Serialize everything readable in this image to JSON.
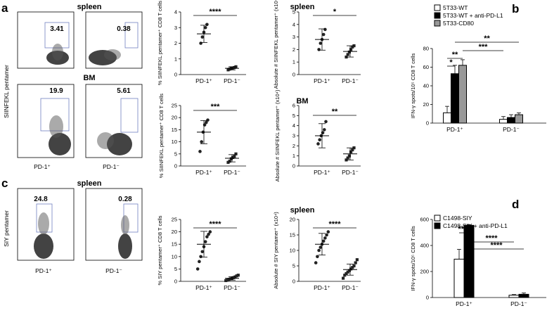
{
  "panel_labels": {
    "a": "a",
    "b": "b",
    "c": "c",
    "d": "d"
  },
  "flow": {
    "y_axis_a": "SIINFEKL pentamer",
    "y_axis_c": "SIY pentamer",
    "title_spleen_a": "spleen",
    "title_bm": "BM",
    "title_spleen_c": "spleen",
    "x_pos": "PD-1⁺",
    "x_neg": "PD-1⁻",
    "gates": {
      "a_spleen_pos": "3.41",
      "a_spleen_neg": "0.38",
      "a_bm_pos": "19.9",
      "a_bm_neg": "5.61",
      "c_spleen_pos": "24.8",
      "c_spleen_neg": "0.28"
    }
  },
  "titles": {
    "spleen_a": "spleen",
    "bm": "BM",
    "spleen_c": "spleen"
  },
  "chart_data": [
    {
      "id": "a_pct_spleen",
      "type": "scatter",
      "panel": "a",
      "tissue": "spleen",
      "ylabel": "% SIINFEKL pentamer⁺ CD8 T cells",
      "ylim": [
        0,
        4
      ],
      "yticks": [
        "0",
        "1",
        "2",
        "3",
        "4"
      ],
      "categories": [
        "PD-1⁺",
        "PD-1⁻"
      ],
      "points": [
        [
          2.0,
          2.4,
          2.7,
          3.0,
          3.2
        ],
        [
          0.3,
          0.35,
          0.4,
          0.42,
          0.45,
          0.5
        ]
      ],
      "mean": [
        2.6,
        0.4
      ],
      "sd": [
        0.55,
        0.1
      ],
      "sig": "****"
    },
    {
      "id": "a_abs_spleen",
      "type": "scatter",
      "panel": "a",
      "tissue": "spleen",
      "ylabel": "Absolute # SIINFEKL pentamer⁺ (x10⁴)",
      "ylim": [
        0,
        5
      ],
      "yticks": [
        "0",
        "1",
        "2",
        "3",
        "4",
        "5"
      ],
      "categories": [
        "PD-1⁺",
        "PD-1⁻"
      ],
      "points": [
        [
          2.0,
          2.5,
          2.8,
          3.2,
          3.6
        ],
        [
          1.4,
          1.6,
          1.8,
          2.0,
          2.2,
          2.3
        ]
      ],
      "mean": [
        2.8,
        1.85
      ],
      "sd": [
        0.85,
        0.45
      ],
      "sig": "*"
    },
    {
      "id": "a_pct_bm",
      "type": "scatter",
      "panel": "a",
      "tissue": "BM",
      "ylabel": "% SIINFEKL pentamer⁺ CD8 T cells",
      "ylim": [
        0,
        25
      ],
      "yticks": [
        "0",
        "5",
        "10",
        "15",
        "20",
        "25"
      ],
      "categories": [
        "PD-1⁺",
        "PD-1⁻"
      ],
      "points": [
        [
          6,
          10,
          14,
          17,
          18,
          19
        ],
        [
          1.5,
          2,
          3,
          3.5,
          4,
          5
        ]
      ],
      "mean": [
        14,
        3.2
      ],
      "sd": [
        4.8,
        1.5
      ],
      "sig": "***"
    },
    {
      "id": "a_abs_bm",
      "type": "scatter",
      "panel": "a",
      "tissue": "BM",
      "ylabel": "Absolute # SIINFEKL pentamer⁺ (x10⁴)",
      "ylim": [
        0,
        6
      ],
      "yticks": [
        "0",
        "1",
        "2",
        "3",
        "4",
        "5",
        "6"
      ],
      "categories": [
        "PD-1⁺",
        "PD-1⁻"
      ],
      "points": [
        [
          2.2,
          2.6,
          3.0,
          3.3,
          3.6,
          4.4
        ],
        [
          0.6,
          0.8,
          1.0,
          1.4,
          1.6,
          1.8
        ]
      ],
      "mean": [
        3.0,
        1.2
      ],
      "sd": [
        1.2,
        0.6
      ],
      "sig": "**"
    },
    {
      "id": "c_pct_spleen",
      "type": "scatter",
      "panel": "c",
      "tissue": "spleen",
      "ylabel": "% SIY pentamer⁺ CD8 T cells",
      "ylim": [
        0,
        25
      ],
      "yticks": [
        "0",
        "5",
        "10",
        "15",
        "20",
        "25"
      ],
      "categories": [
        "PD-1⁺",
        "PD-1⁻"
      ],
      "points": [
        [
          5,
          8,
          10,
          12,
          14,
          16,
          18,
          19,
          20
        ],
        [
          0.3,
          0.5,
          0.8,
          1,
          1.2,
          1.5,
          1.8,
          2.2,
          2.5
        ]
      ],
      "mean": [
        15,
        1.2
      ],
      "sd": [
        5.2,
        0.7
      ],
      "sig": "****"
    },
    {
      "id": "c_abs_spleen",
      "type": "scatter",
      "panel": "c",
      "tissue": "spleen",
      "ylabel": "Absolute # SIY pentamer⁺ (x10⁴)",
      "ylim": [
        0,
        20
      ],
      "yticks": [
        "0",
        "5",
        "10",
        "15",
        "20"
      ],
      "categories": [
        "PD-1⁺",
        "PD-1⁻"
      ],
      "points": [
        [
          6,
          8,
          10,
          11,
          12,
          13,
          14,
          15,
          16
        ],
        [
          1,
          2,
          2.5,
          3,
          3.5,
          4,
          4.5,
          5,
          6,
          7
        ]
      ],
      "mean": [
        12,
        3.8
      ],
      "sd": [
        3.5,
        1.8
      ],
      "sig": "****"
    },
    {
      "id": "b_elispot",
      "type": "bar",
      "panel": "b",
      "ylabel": "IFN-γ spots/10⁵ CD8 T cells",
      "ylim": [
        0,
        80
      ],
      "yticks": [
        "0",
        "20",
        "40",
        "60",
        "80"
      ],
      "categories": [
        "PD-1⁺",
        "PD-1⁻"
      ],
      "series": [
        {
          "name": "5T33-WT",
          "fill": "#ffffff",
          "values": [
            11,
            4
          ],
          "err": [
            7,
            3
          ]
        },
        {
          "name": "5T33-WT + anti-PD-L1",
          "fill": "#000000",
          "values": [
            53,
            6
          ],
          "err": [
            9,
            3
          ]
        },
        {
          "name": "5T33-CD80",
          "fill": "#999999",
          "values": [
            62,
            9
          ],
          "err": [
            6,
            2
          ]
        }
      ],
      "sig": [
        "*",
        "**",
        "***",
        "**"
      ]
    },
    {
      "id": "d_elispot",
      "type": "bar",
      "panel": "d",
      "ylabel": "IFN-γ spots/10⁵ CD8 T cells",
      "ylim": [
        0,
        600
      ],
      "yticks": [
        "0",
        "200",
        "400",
        "600"
      ],
      "categories": [
        "PD-1⁺",
        "PD-1⁻"
      ],
      "series": [
        {
          "name": "C1498-SIY",
          "fill": "#ffffff",
          "values": [
            295,
            18
          ],
          "err": [
            75,
            5
          ]
        },
        {
          "name": "C1498-SIY + anti-PD-L1",
          "fill": "#000000",
          "values": [
            555,
            25
          ],
          "err": [
            5,
            10
          ]
        }
      ],
      "sig": [
        "****",
        "****",
        "****"
      ]
    }
  ]
}
